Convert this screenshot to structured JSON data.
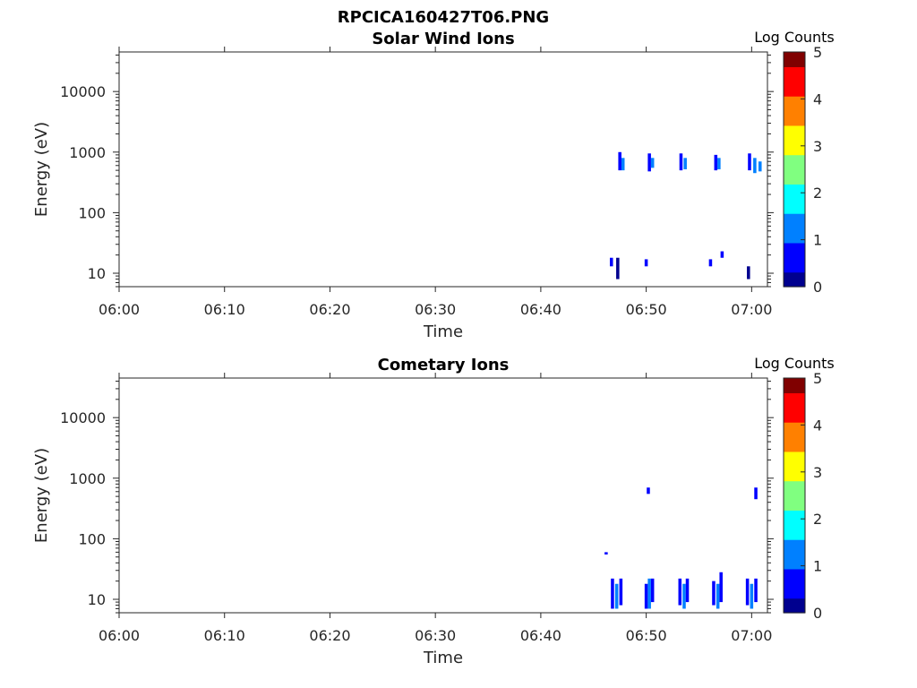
{
  "figure": {
    "title": "RPCICA160427T06.PNG"
  },
  "colors": {
    "colormap": [
      "#00008f",
      "#0000ff",
      "#0080ff",
      "#00ffff",
      "#80ff80",
      "#ffff00",
      "#ff8000",
      "#ff0000",
      "#800000"
    ]
  },
  "chart_data": [
    {
      "type": "heatmap",
      "title": "Solar Wind Ions",
      "xlabel": "Time",
      "ylabel": "Energy (eV)",
      "x_ticks": [
        "06:00",
        "06:10",
        "06:20",
        "06:30",
        "06:40",
        "06:50",
        "07:00"
      ],
      "xlim_minutes": [
        0,
        61.5
      ],
      "y_scale": "log",
      "y_ticks": [
        10,
        100,
        1000,
        10000
      ],
      "y_tick_labels": [
        "10",
        "100",
        "1000",
        "10000"
      ],
      "ylim": [
        6,
        45000
      ],
      "colorbar": {
        "title": "Log Counts",
        "min": 0,
        "max": 5,
        "ticks": [
          "0",
          "1",
          "2",
          "3",
          "4",
          "5"
        ]
      },
      "points": [
        {
          "t": 47.5,
          "e0": 500,
          "e1": 1000,
          "v": 0.8
        },
        {
          "t": 47.8,
          "e0": 500,
          "e1": 800,
          "v": 1.1
        },
        {
          "t": 50.3,
          "e0": 480,
          "e1": 950,
          "v": 0.8
        },
        {
          "t": 50.6,
          "e0": 550,
          "e1": 800,
          "v": 1.0
        },
        {
          "t": 53.3,
          "e0": 500,
          "e1": 950,
          "v": 0.8
        },
        {
          "t": 53.7,
          "e0": 520,
          "e1": 800,
          "v": 1.0
        },
        {
          "t": 56.6,
          "e0": 500,
          "e1": 900,
          "v": 0.8
        },
        {
          "t": 56.9,
          "e0": 520,
          "e1": 800,
          "v": 1.1
        },
        {
          "t": 59.8,
          "e0": 500,
          "e1": 950,
          "v": 0.7
        },
        {
          "t": 60.3,
          "e0": 450,
          "e1": 800,
          "v": 1.0
        },
        {
          "t": 60.8,
          "e0": 480,
          "e1": 700,
          "v": 1.2
        },
        {
          "t": 46.7,
          "e0": 13,
          "e1": 18,
          "v": 0.6
        },
        {
          "t": 47.3,
          "e0": 8,
          "e1": 18,
          "v": 0.3
        },
        {
          "t": 50.0,
          "e0": 13,
          "e1": 17,
          "v": 0.5
        },
        {
          "t": 56.1,
          "e0": 13,
          "e1": 17,
          "v": 0.6
        },
        {
          "t": 57.2,
          "e0": 18,
          "e1": 23,
          "v": 0.4
        },
        {
          "t": 59.7,
          "e0": 8,
          "e1": 13,
          "v": 0.3
        }
      ]
    },
    {
      "type": "heatmap",
      "title": "Cometary Ions",
      "xlabel": "Time",
      "ylabel": "Energy (eV)",
      "x_ticks": [
        "06:00",
        "06:10",
        "06:20",
        "06:30",
        "06:40",
        "06:50",
        "07:00"
      ],
      "xlim_minutes": [
        0,
        61.5
      ],
      "y_scale": "log",
      "y_ticks": [
        10,
        100,
        1000,
        10000
      ],
      "y_tick_labels": [
        "10",
        "100",
        "1000",
        "10000"
      ],
      "ylim": [
        6,
        45000
      ],
      "colorbar": {
        "title": "Log Counts",
        "min": 0,
        "max": 5,
        "ticks": [
          "0",
          "1",
          "2",
          "3",
          "4",
          "5"
        ]
      },
      "points": [
        {
          "t": 46.2,
          "e0": 55,
          "e1": 60,
          "v": 0.6
        },
        {
          "t": 46.8,
          "e0": 7,
          "e1": 22,
          "v": 0.4
        },
        {
          "t": 47.2,
          "e0": 7,
          "e1": 18,
          "v": 1.4
        },
        {
          "t": 47.6,
          "e0": 8,
          "e1": 22,
          "v": 0.8
        },
        {
          "t": 50.0,
          "e0": 7,
          "e1": 18,
          "v": 0.5
        },
        {
          "t": 50.3,
          "e0": 7,
          "e1": 22,
          "v": 1.5
        },
        {
          "t": 50.6,
          "e0": 9,
          "e1": 22,
          "v": 0.8
        },
        {
          "t": 50.2,
          "e0": 550,
          "e1": 700,
          "v": 0.4
        },
        {
          "t": 53.2,
          "e0": 8,
          "e1": 22,
          "v": 0.6
        },
        {
          "t": 53.6,
          "e0": 7,
          "e1": 18,
          "v": 1.3
        },
        {
          "t": 53.9,
          "e0": 9,
          "e1": 22,
          "v": 0.9
        },
        {
          "t": 56.4,
          "e0": 8,
          "e1": 20,
          "v": 0.5
        },
        {
          "t": 56.8,
          "e0": 7,
          "e1": 18,
          "v": 1.3
        },
        {
          "t": 57.1,
          "e0": 9,
          "e1": 28,
          "v": 0.8
        },
        {
          "t": 59.6,
          "e0": 8,
          "e1": 22,
          "v": 0.7
        },
        {
          "t": 60.0,
          "e0": 7,
          "e1": 18,
          "v": 1.4
        },
        {
          "t": 60.4,
          "e0": 9,
          "e1": 22,
          "v": 0.8
        },
        {
          "t": 60.4,
          "e0": 450,
          "e1": 700,
          "v": 0.4
        }
      ]
    }
  ]
}
